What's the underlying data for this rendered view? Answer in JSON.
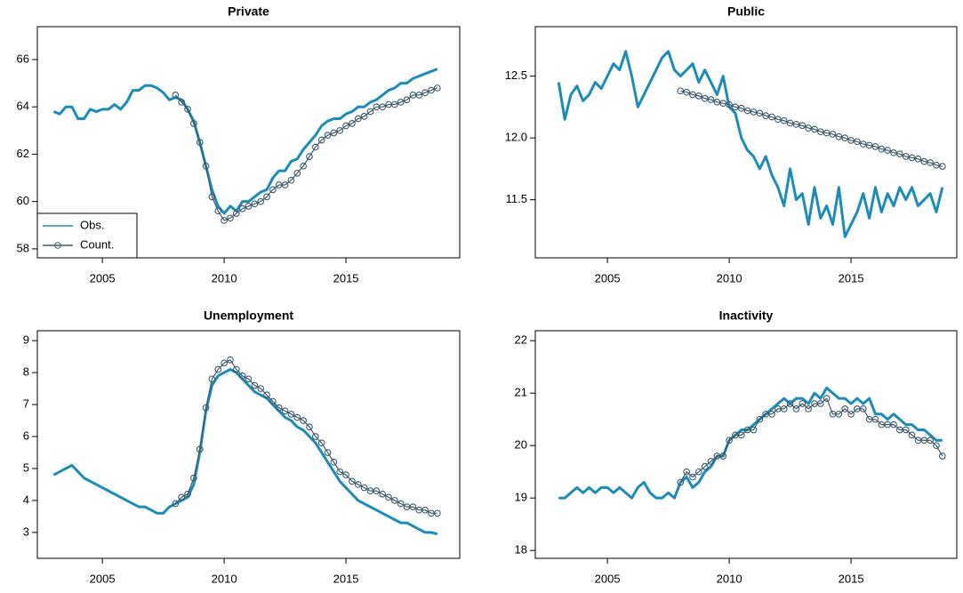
{
  "chart_data": [
    {
      "type": "line",
      "title": "Private",
      "legend": "bottomleft",
      "x": [
        2003,
        2003.25,
        2003.5,
        2003.75,
        2004,
        2004.25,
        2004.5,
        2004.75,
        2005,
        2005.25,
        2005.5,
        2005.75,
        2006,
        2006.25,
        2006.5,
        2006.75,
        2007,
        2007.25,
        2007.5,
        2007.75,
        2008,
        2008.25,
        2008.5,
        2008.75,
        2009,
        2009.25,
        2009.5,
        2009.75,
        2010,
        2010.25,
        2010.5,
        2010.75,
        2011,
        2011.25,
        2011.5,
        2011.75,
        2012,
        2012.25,
        2012.5,
        2012.75,
        2013,
        2013.25,
        2013.5,
        2013.75,
        2014,
        2014.25,
        2014.5,
        2014.75,
        2015,
        2015.25,
        2015.5,
        2015.75,
        2016,
        2016.25,
        2016.5,
        2016.75,
        2017,
        2017.25,
        2017.5,
        2017.75,
        2018,
        2018.25,
        2018.5,
        2018.75
      ],
      "series": [
        {
          "name": "Obs.",
          "color": "#1a8cbc",
          "values": [
            63.8,
            63.7,
            64.0,
            64.0,
            63.5,
            63.5,
            63.9,
            63.8,
            63.9,
            63.9,
            64.1,
            63.9,
            64.2,
            64.7,
            64.7,
            64.9,
            64.9,
            64.8,
            64.6,
            64.3,
            64.4,
            64.3,
            63.9,
            63.4,
            62.5,
            61.5,
            60.5,
            59.8,
            59.5,
            59.8,
            59.6,
            60.0,
            60.0,
            60.2,
            60.4,
            60.5,
            61.0,
            61.3,
            61.3,
            61.7,
            61.8,
            62.2,
            62.5,
            62.8,
            63.2,
            63.4,
            63.5,
            63.5,
            63.7,
            63.8,
            64.0,
            64.0,
            64.2,
            64.3,
            64.5,
            64.7,
            64.8,
            65.0,
            65.0,
            65.2,
            65.3,
            65.4,
            65.5,
            65.6
          ]
        },
        {
          "name": "Count.",
          "color": "#3d5a6c",
          "values": [
            null,
            null,
            null,
            null,
            null,
            null,
            null,
            null,
            null,
            null,
            null,
            null,
            null,
            null,
            null,
            null,
            null,
            null,
            null,
            null,
            64.5,
            64.2,
            63.9,
            63.3,
            62.5,
            61.5,
            60.2,
            59.6,
            59.2,
            59.3,
            59.5,
            59.7,
            59.8,
            59.9,
            60.0,
            60.2,
            60.5,
            60.7,
            60.7,
            60.9,
            61.2,
            61.5,
            61.9,
            62.3,
            62.6,
            62.8,
            62.9,
            63.0,
            63.2,
            63.3,
            63.5,
            63.6,
            63.8,
            64.0,
            64.0,
            64.1,
            64.1,
            64.2,
            64.3,
            64.5,
            64.5,
            64.6,
            64.7,
            64.8
          ]
        }
      ],
      "xlim": [
        2002.33,
        2019.67
      ],
      "xticks": [
        2005,
        2010,
        2015
      ],
      "ylim": [
        57.62,
        67.39
      ],
      "yticks": [
        58,
        60,
        62,
        64,
        66
      ]
    },
    {
      "type": "line",
      "title": "Public",
      "x": [
        2003,
        2003.25,
        2003.5,
        2003.75,
        2004,
        2004.25,
        2004.5,
        2004.75,
        2005,
        2005.25,
        2005.5,
        2005.75,
        2006,
        2006.25,
        2006.5,
        2006.75,
        2007,
        2007.25,
        2007.5,
        2007.75,
        2008,
        2008.25,
        2008.5,
        2008.75,
        2009,
        2009.25,
        2009.5,
        2009.75,
        2010,
        2010.25,
        2010.5,
        2010.75,
        2011,
        2011.25,
        2011.5,
        2011.75,
        2012,
        2012.25,
        2012.5,
        2012.75,
        2013,
        2013.25,
        2013.5,
        2013.75,
        2014,
        2014.25,
        2014.5,
        2014.75,
        2015,
        2015.25,
        2015.5,
        2015.75,
        2016,
        2016.25,
        2016.5,
        2016.75,
        2017,
        2017.25,
        2017.5,
        2017.75,
        2018,
        2018.25,
        2018.5,
        2018.75
      ],
      "series": [
        {
          "color": "#1a8cbc",
          "values": [
            12.45,
            12.15,
            12.35,
            12.42,
            12.3,
            12.35,
            12.45,
            12.4,
            12.5,
            12.6,
            12.55,
            12.7,
            12.5,
            12.25,
            12.35,
            12.45,
            12.55,
            12.65,
            12.7,
            12.55,
            12.5,
            12.55,
            12.6,
            12.45,
            12.55,
            12.45,
            12.35,
            12.5,
            12.25,
            12.2,
            12.0,
            11.9,
            11.85,
            11.75,
            11.85,
            11.7,
            11.6,
            11.45,
            11.75,
            11.5,
            11.55,
            11.3,
            11.6,
            11.35,
            11.45,
            11.3,
            11.6,
            11.2,
            11.3,
            11.4,
            11.55,
            11.35,
            11.6,
            11.4,
            11.55,
            11.45,
            11.6,
            11.5,
            11.6,
            11.45,
            11.5,
            11.55,
            11.4,
            11.6
          ]
        },
        {
          "color": "#3d5a6c",
          "values": [
            null,
            null,
            null,
            null,
            null,
            null,
            null,
            null,
            null,
            null,
            null,
            null,
            null,
            null,
            null,
            null,
            null,
            null,
            null,
            null,
            12.38,
            12.37,
            12.35,
            12.34,
            12.32,
            12.31,
            12.29,
            12.28,
            12.27,
            12.25,
            12.24,
            12.22,
            12.21,
            12.2,
            12.18,
            12.17,
            12.15,
            12.14,
            12.12,
            12.11,
            12.1,
            12.08,
            12.07,
            12.05,
            12.04,
            12.03,
            12.01,
            12.0,
            11.98,
            11.97,
            11.95,
            11.94,
            11.93,
            11.91,
            11.9,
            11.88,
            11.87,
            11.85,
            11.84,
            11.83,
            11.81,
            11.8,
            11.78,
            11.77
          ]
        }
      ],
      "xlim": [
        2002.04,
        2019.34
      ],
      "xticks": [
        2005,
        2010,
        2015
      ],
      "ylim": [
        11.03,
        12.9
      ],
      "yticks": [
        11.5,
        {
          "value": 12,
          "label": "12.0"
        },
        12.5
      ]
    },
    {
      "type": "line",
      "title": "Unemployment",
      "x": [
        2003,
        2003.25,
        2003.5,
        2003.75,
        2004,
        2004.25,
        2004.5,
        2004.75,
        2005,
        2005.25,
        2005.5,
        2005.75,
        2006,
        2006.25,
        2006.5,
        2006.75,
        2007,
        2007.25,
        2007.5,
        2007.75,
        2008,
        2008.25,
        2008.5,
        2008.75,
        2009,
        2009.25,
        2009.5,
        2009.75,
        2010,
        2010.25,
        2010.5,
        2010.75,
        2011,
        2011.25,
        2011.5,
        2011.75,
        2012,
        2012.25,
        2012.5,
        2012.75,
        2013,
        2013.25,
        2013.5,
        2013.75,
        2014,
        2014.25,
        2014.5,
        2014.75,
        2015,
        2015.25,
        2015.5,
        2015.75,
        2016,
        2016.25,
        2016.5,
        2016.75,
        2017,
        2017.25,
        2017.5,
        2017.75,
        2018,
        2018.25,
        2018.5,
        2018.75
      ],
      "series": [
        {
          "color": "#1a8cbc",
          "values": [
            4.8,
            4.9,
            5.0,
            5.1,
            4.9,
            4.7,
            4.6,
            4.5,
            4.4,
            4.3,
            4.2,
            4.1,
            4.0,
            3.9,
            3.8,
            3.8,
            3.7,
            3.6,
            3.6,
            3.8,
            3.9,
            4.0,
            4.1,
            4.5,
            5.5,
            6.8,
            7.6,
            7.9,
            8.0,
            8.1,
            8.0,
            7.8,
            7.6,
            7.4,
            7.3,
            7.2,
            7.0,
            6.8,
            6.6,
            6.5,
            6.3,
            6.2,
            6.0,
            5.8,
            5.5,
            5.2,
            4.9,
            4.6,
            4.4,
            4.2,
            4.0,
            3.9,
            3.8,
            3.7,
            3.6,
            3.5,
            3.4,
            3.3,
            3.3,
            3.2,
            3.1,
            3.0,
            3.0,
            2.95
          ]
        },
        {
          "color": "#3d5a6c",
          "values": [
            null,
            null,
            null,
            null,
            null,
            null,
            null,
            null,
            null,
            null,
            null,
            null,
            null,
            null,
            null,
            null,
            null,
            null,
            null,
            null,
            3.9,
            4.1,
            4.2,
            4.7,
            5.6,
            6.9,
            7.8,
            8.1,
            8.3,
            8.4,
            8.1,
            7.9,
            7.8,
            7.6,
            7.5,
            7.3,
            7.1,
            6.9,
            6.8,
            6.7,
            6.6,
            6.5,
            6.3,
            6.0,
            5.8,
            5.5,
            5.2,
            4.9,
            4.8,
            4.6,
            4.5,
            4.4,
            4.3,
            4.3,
            4.2,
            4.1,
            4.0,
            3.9,
            3.8,
            3.8,
            3.7,
            3.7,
            3.6,
            3.6
          ]
        }
      ],
      "xlim": [
        2002.33,
        2019.67
      ],
      "xticks": [
        2005,
        2010,
        2015
      ],
      "ylim": [
        2.19,
        9.31
      ],
      "yticks": [
        3,
        4,
        5,
        6,
        7,
        8,
        9
      ]
    },
    {
      "type": "line",
      "title": "Inactivity",
      "x": [
        2003,
        2003.25,
        2003.5,
        2003.75,
        2004,
        2004.25,
        2004.5,
        2004.75,
        2005,
        2005.25,
        2005.5,
        2005.75,
        2006,
        2006.25,
        2006.5,
        2006.75,
        2007,
        2007.25,
        2007.5,
        2007.75,
        2008,
        2008.25,
        2008.5,
        2008.75,
        2009,
        2009.25,
        2009.5,
        2009.75,
        2010,
        2010.25,
        2010.5,
        2010.75,
        2011,
        2011.25,
        2011.5,
        2011.75,
        2012,
        2012.25,
        2012.5,
        2012.75,
        2013,
        2013.25,
        2013.5,
        2013.75,
        2014,
        2014.25,
        2014.5,
        2014.75,
        2015,
        2015.25,
        2015.5,
        2015.75,
        2016,
        2016.25,
        2016.5,
        2016.75,
        2017,
        2017.25,
        2017.5,
        2017.75,
        2018,
        2018.25,
        2018.5,
        2018.75
      ],
      "series": [
        {
          "color": "#1a8cbc",
          "values": [
            19.0,
            19.0,
            19.1,
            19.2,
            19.1,
            19.2,
            19.1,
            19.2,
            19.2,
            19.1,
            19.2,
            19.1,
            19.0,
            19.2,
            19.3,
            19.1,
            19.0,
            19.0,
            19.1,
            19.0,
            19.3,
            19.4,
            19.2,
            19.3,
            19.5,
            19.6,
            19.8,
            19.8,
            20.1,
            20.2,
            20.3,
            20.3,
            20.4,
            20.5,
            20.6,
            20.7,
            20.8,
            20.9,
            20.8,
            20.9,
            20.9,
            20.8,
            21.0,
            20.9,
            21.1,
            21.0,
            20.9,
            20.9,
            20.8,
            20.9,
            20.8,
            20.9,
            20.6,
            20.6,
            20.5,
            20.6,
            20.5,
            20.4,
            20.4,
            20.3,
            20.3,
            20.2,
            20.1,
            20.1
          ]
        },
        {
          "color": "#3d5a6c",
          "values": [
            null,
            null,
            null,
            null,
            null,
            null,
            null,
            null,
            null,
            null,
            null,
            null,
            null,
            null,
            null,
            null,
            null,
            null,
            null,
            null,
            19.3,
            19.5,
            19.4,
            19.5,
            19.6,
            19.7,
            19.8,
            19.8,
            20.1,
            20.2,
            20.2,
            20.3,
            20.3,
            20.5,
            20.6,
            20.6,
            20.7,
            20.7,
            20.8,
            20.7,
            20.8,
            20.7,
            20.8,
            20.8,
            20.9,
            20.6,
            20.6,
            20.7,
            20.6,
            20.7,
            20.7,
            20.5,
            20.5,
            20.4,
            20.4,
            20.4,
            20.3,
            20.3,
            20.2,
            20.1,
            20.1,
            20.1,
            20.0,
            19.8
          ]
        }
      ],
      "xlim": [
        2002.04,
        2019.34
      ],
      "xticks": [
        2005,
        2010,
        2015
      ],
      "ylim": [
        17.85,
        22.19
      ],
      "yticks": [
        18,
        19,
        20,
        21,
        22
      ]
    }
  ]
}
